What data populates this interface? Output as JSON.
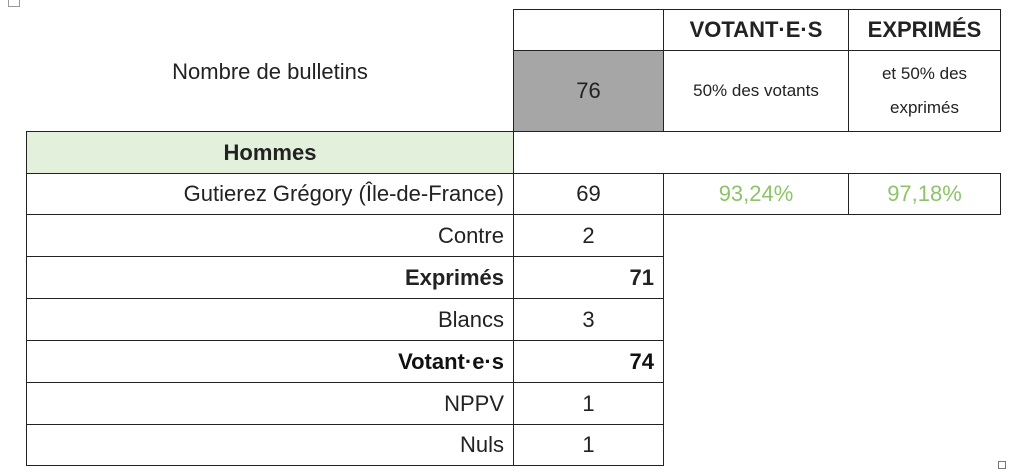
{
  "header": {
    "label": "Nombre de bulletins",
    "bulletins": "76",
    "col_votants": "VOTANT·E·S",
    "col_exprimes": "EXPRIMÉS",
    "votants_threshold": "50% des votants",
    "exprimes_threshold": "et 50% des exprimés"
  },
  "section": {
    "title": "Hommes"
  },
  "candidate": {
    "name": "Gutierez Grégory (Île-de-France)",
    "votes": "69",
    "pct_votants": "93,24%",
    "pct_exprimes": "97,18%"
  },
  "rows": [
    {
      "label": "Contre",
      "value": "2"
    },
    {
      "label": "Exprimés",
      "value": "71"
    },
    {
      "label": "Blancs",
      "value": "3"
    },
    {
      "label": "Votant·e·s",
      "value": "74"
    },
    {
      "label": "NPPV",
      "value": "1"
    },
    {
      "label": "Nuls",
      "value": "1"
    }
  ],
  "colors": {
    "green_text": "#8dc46a",
    "header_bg": "#e3f1dc",
    "gray_cell": "#a6a6a6"
  }
}
